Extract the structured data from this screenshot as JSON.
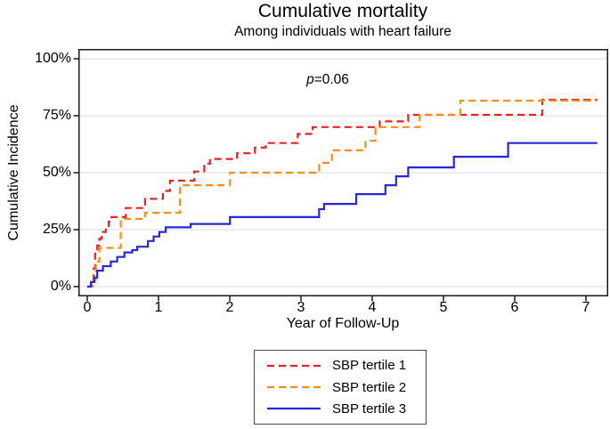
{
  "title": "Cumulative mortality",
  "subtitle": "Among individuals with heart failure",
  "annotation": {
    "p_symbol": "p",
    "p_rest": "=0.06"
  },
  "y_axis": {
    "label": "Cumulative Incidence",
    "ticks": [
      "0%",
      "25%",
      "50%",
      "75%",
      "100%"
    ]
  },
  "x_axis": {
    "label": "Year of Follow-Up",
    "ticks": [
      "0",
      "1",
      "2",
      "3",
      "4",
      "5",
      "6",
      "7"
    ]
  },
  "legend": {
    "items": [
      {
        "label": "SBP tertile 1"
      },
      {
        "label": "SBP tertile 2"
      },
      {
        "label": "SBP tertile 3"
      }
    ]
  },
  "chart_data": {
    "type": "line",
    "subtype": "step-after cumulative incidence (Kaplan-Meier)",
    "title": "Cumulative mortality",
    "subtitle": "Among individuals with heart failure",
    "xlabel": "Year of Follow-Up",
    "ylabel": "Cumulative Incidence",
    "annotation": "p=0.06",
    "x_ticks": [
      0,
      1,
      2,
      3,
      4,
      5,
      6,
      7
    ],
    "y_ticks_pct": [
      0,
      25,
      50,
      75,
      100
    ],
    "xlim": [
      -0.11,
      7.33
    ],
    "ylim_pct": [
      -4,
      104
    ],
    "grid": "horizontal",
    "legend_position": "below-plot-boxed",
    "x_end": 7.15,
    "series": [
      {
        "name": "SBP tertile 1",
        "color": "#ee2020",
        "style": "dashed",
        "points_year_pct": [
          [
            0,
            0
          ],
          [
            0.06,
            3
          ],
          [
            0.09,
            8
          ],
          [
            0.11,
            15
          ],
          [
            0.14,
            18
          ],
          [
            0.17,
            21
          ],
          [
            0.2,
            24
          ],
          [
            0.26,
            26.5
          ],
          [
            0.3,
            28.5
          ],
          [
            0.34,
            30.5
          ],
          [
            0.54,
            34.5
          ],
          [
            0.81,
            38.5
          ],
          [
            1.06,
            42
          ],
          [
            1.16,
            46.5
          ],
          [
            1.5,
            50.5
          ],
          [
            1.64,
            54
          ],
          [
            1.72,
            56
          ],
          [
            2.1,
            58.5
          ],
          [
            2.35,
            61
          ],
          [
            2.5,
            63
          ],
          [
            2.95,
            67
          ],
          [
            3.16,
            70
          ],
          [
            4.1,
            72.5
          ],
          [
            4.5,
            75.4
          ],
          [
            6.38,
            82
          ]
        ]
      },
      {
        "name": "SBP tertile 2",
        "color": "#ff8d12",
        "style": "dashed",
        "points_year_pct": [
          [
            0,
            0
          ],
          [
            0.08,
            3
          ],
          [
            0.12,
            11
          ],
          [
            0.17,
            17
          ],
          [
            0.47,
            29.7
          ],
          [
            0.81,
            32.4
          ],
          [
            1.3,
            44.5
          ],
          [
            2.0,
            50
          ],
          [
            3.25,
            54.3
          ],
          [
            3.43,
            59.8
          ],
          [
            3.9,
            64
          ],
          [
            4.04,
            70
          ],
          [
            4.66,
            75.4
          ],
          [
            5.23,
            81.6
          ]
        ]
      },
      {
        "name": "SBP tertile 3",
        "color": "#2828d8",
        "style": "solid",
        "points_year_pct": [
          [
            0,
            0
          ],
          [
            0.05,
            2
          ],
          [
            0.1,
            4
          ],
          [
            0.14,
            7
          ],
          [
            0.22,
            9
          ],
          [
            0.33,
            11
          ],
          [
            0.42,
            13
          ],
          [
            0.52,
            15
          ],
          [
            0.63,
            16
          ],
          [
            0.7,
            17.5
          ],
          [
            0.85,
            20
          ],
          [
            0.93,
            22
          ],
          [
            1.01,
            24
          ],
          [
            1.1,
            26
          ],
          [
            1.45,
            27.5
          ],
          [
            2.0,
            30.5
          ],
          [
            3.25,
            34
          ],
          [
            3.32,
            36.3
          ],
          [
            3.77,
            40.6
          ],
          [
            4.18,
            44.5
          ],
          [
            4.33,
            48.4
          ],
          [
            4.5,
            52.3
          ],
          [
            5.14,
            57
          ],
          [
            5.9,
            63
          ]
        ]
      }
    ]
  }
}
